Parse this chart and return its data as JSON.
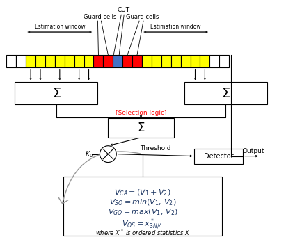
{
  "bg_color": "#ffffff",
  "colors": {
    "yellow": "#FFFF00",
    "red": "#FF0000",
    "blue": "#4472C4",
    "selection_logic_text": "#FF0000",
    "box_edge": "#000000",
    "formula_text": "#1F3864",
    "curve_arrow": "#aaaaaa"
  },
  "labels": {
    "CUT": "CUT",
    "guard_left": "Guard cells",
    "guard_right": "Guard cells",
    "est_left": "Estimation window",
    "est_right": "Estimation window",
    "sum": "Σ",
    "selection": "[Selection logic]",
    "K0": "$K_0$",
    "threshold": "Threshold",
    "detector": "Detector",
    "output": "Output",
    "dots": "..."
  }
}
